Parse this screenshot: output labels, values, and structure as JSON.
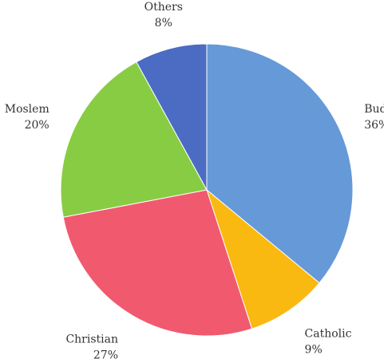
{
  "chart_data": {
    "type": "pie",
    "title": "",
    "start_angle_deg": 0,
    "direction": "clockwise",
    "legend": "none",
    "slices": [
      {
        "label": "Buddhist",
        "value": 36,
        "display": "36%",
        "color": "#6699d8"
      },
      {
        "label": "Catholic",
        "value": 9,
        "display": "9%",
        "color": "#f9b911"
      },
      {
        "label": "Christian",
        "value": 27,
        "display": "27%",
        "color": "#f1596f"
      },
      {
        "label": "Moslem",
        "value": 20,
        "display": "20%",
        "color": "#88cc44"
      },
      {
        "label": "Others",
        "value": 8,
        "display": "8%",
        "color": "#4b6cc2"
      }
    ]
  }
}
